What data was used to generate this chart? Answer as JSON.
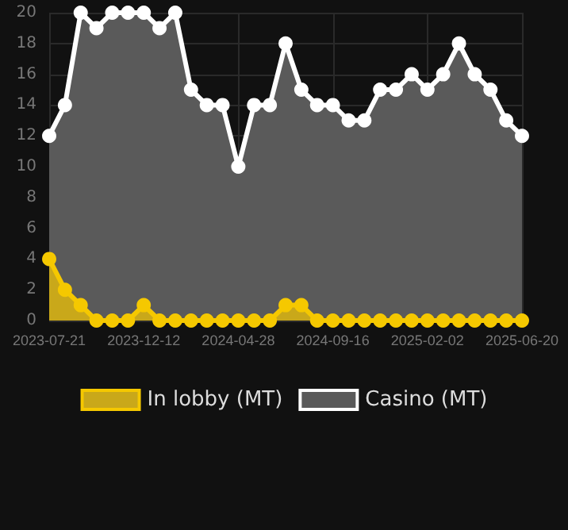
{
  "chart_data": {
    "type": "area",
    "categories": [
      "2023-07-21",
      null,
      null,
      null,
      null,
      null,
      "2023-12-12",
      null,
      null,
      null,
      null,
      null,
      "2024-04-28",
      null,
      null,
      null,
      null,
      null,
      "2024-09-16",
      null,
      null,
      null,
      null,
      null,
      "2025-02-02",
      null,
      null,
      null,
      null,
      null,
      "2025-06-20"
    ],
    "series": [
      {
        "name": "In lobby (MT)",
        "color": "#f5c800",
        "values": [
          4,
          2,
          1,
          0,
          0,
          0,
          1,
          0,
          0,
          0,
          0,
          0,
          0,
          0,
          0,
          1,
          1,
          0,
          0,
          0,
          0,
          0,
          0,
          0,
          0,
          0,
          0,
          0,
          0,
          0,
          0
        ]
      },
      {
        "name": "Casino (MT)",
        "color": "#ffffff",
        "values": [
          12,
          14,
          20,
          19,
          20,
          20,
          20,
          19,
          20,
          15,
          14,
          14,
          10,
          14,
          14,
          18,
          15,
          14,
          14,
          13,
          13,
          15,
          15,
          16,
          15,
          16,
          18,
          16,
          15,
          13,
          12
        ]
      }
    ],
    "ylim": [
      0,
      20
    ],
    "yticks": [
      0,
      2,
      4,
      6,
      8,
      10,
      12,
      14,
      16,
      18,
      20
    ],
    "grid": true,
    "legend": "bottom",
    "marker": "circle",
    "line_style": "solid"
  }
}
